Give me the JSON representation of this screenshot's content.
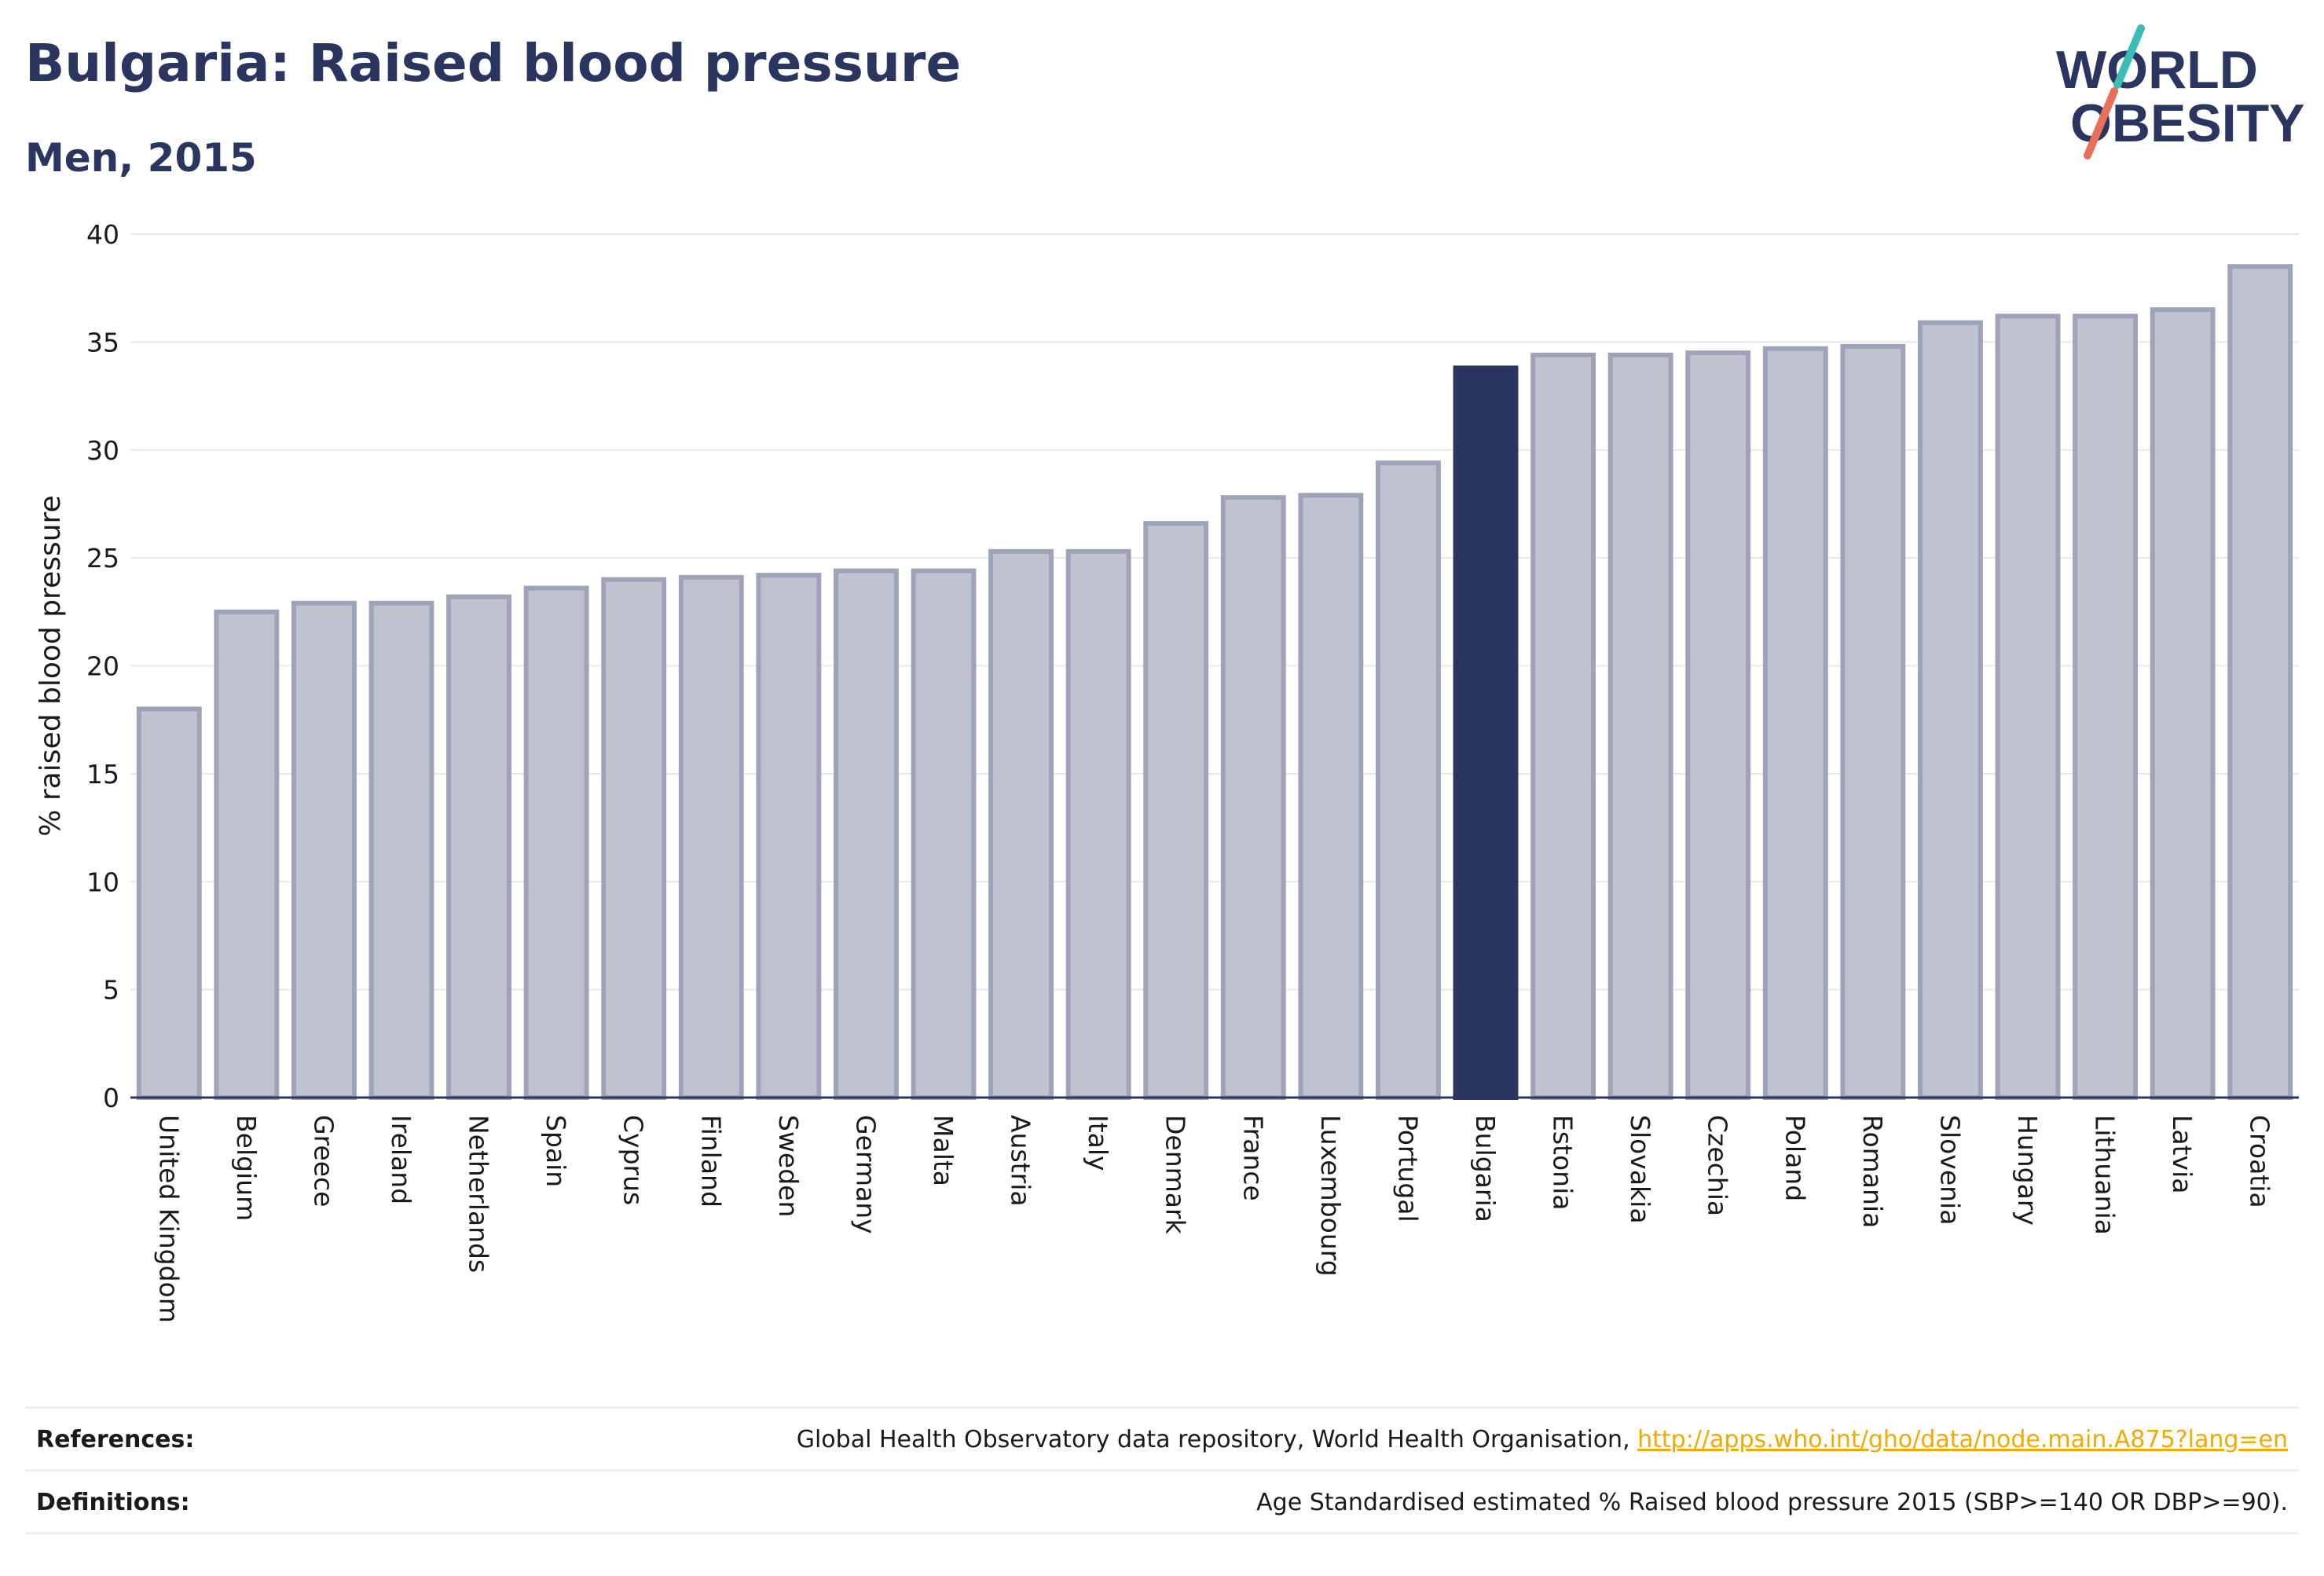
{
  "header": {
    "title": "Bulgaria: Raised blood pressure",
    "subtitle": "Men, 2015"
  },
  "logo": {
    "line1": "WORLD",
    "line2": "OBESITY",
    "colors": {
      "text": "#2a3560",
      "slash_teal": "#3bbcb5",
      "slash_coral": "#e8705a"
    }
  },
  "colors": {
    "bar_default": "#bfc2cf",
    "bar_default_border": "#9ea3b8",
    "bar_highlight": "#2a3560",
    "gridline": "#e6e8ee",
    "axis": "#2a3560",
    "link": "#f2a900"
  },
  "chart_data": {
    "type": "bar",
    "ylabel": "% raised blood pressure",
    "xlabel": "",
    "ylim": [
      0,
      40
    ],
    "yticks": [
      0,
      5,
      10,
      15,
      20,
      25,
      30,
      35,
      40
    ],
    "grid": true,
    "highlight": "Bulgaria",
    "categories": [
      "United Kingdom",
      "Belgium",
      "Greece",
      "Ireland",
      "Netherlands",
      "Spain",
      "Cyprus",
      "Finland",
      "Sweden",
      "Germany",
      "Malta",
      "Austria",
      "Italy",
      "Denmark",
      "France",
      "Luxembourg",
      "Portugal",
      "Bulgaria",
      "Estonia",
      "Slovakia",
      "Czechia",
      "Poland",
      "Romania",
      "Slovenia",
      "Hungary",
      "Lithuania",
      "Latvia",
      "Croatia"
    ],
    "values": [
      18.0,
      22.5,
      22.9,
      22.9,
      23.2,
      23.6,
      24.0,
      24.1,
      24.2,
      24.4,
      24.4,
      25.3,
      25.3,
      26.6,
      27.8,
      27.9,
      29.4,
      33.8,
      34.4,
      34.4,
      34.5,
      34.7,
      34.8,
      35.9,
      36.2,
      36.2,
      36.5,
      38.5
    ]
  },
  "footer": {
    "references_label": "References:",
    "references_text": "Global Health Observatory data repository, World Health Organisation, ",
    "references_link": "http://apps.who.int/gho/data/node.main.A875?lang=en",
    "definitions_label": "Definitions:",
    "definitions_text": "Age Standardised estimated % Raised blood pressure 2015 (SBP>=140 OR DBP>=90)."
  }
}
